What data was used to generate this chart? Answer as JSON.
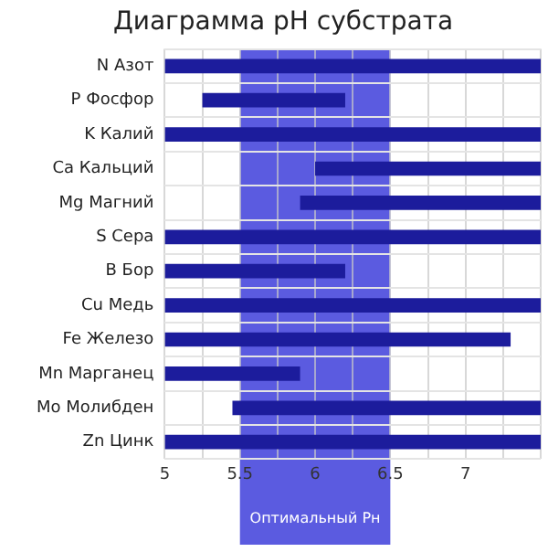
{
  "chart_data": {
    "type": "bar",
    "orientation": "horizontal",
    "title": "Диаграмма pH субстрата",
    "categories": [
      "N Азот",
      "P Фосфор",
      "K Калий",
      "Ca Кальций",
      "Mg Магний",
      "S Сера",
      "B Бор",
      "Cu Медь",
      "Fe Железо",
      "Mn Марганец",
      "Mo Молибден",
      "Zn Цинк"
    ],
    "base": [
      5,
      5.25,
      5,
      6,
      5.9,
      5,
      5,
      5,
      5,
      5,
      5.45,
      5
    ],
    "values": [
      2.5,
      0.95,
      2.5,
      1.5,
      1.6,
      2.5,
      1.2,
      2.5,
      2.3,
      0.9,
      2.05,
      2.5
    ],
    "color": "#1c1c9c",
    "xlim": [
      5,
      7.5
    ],
    "xticks": [
      5,
      {
        "value": 5.25,
        "label": null
      },
      5.5,
      {
        "value": 5.75,
        "label": null
      },
      6,
      {
        "value": 6.25,
        "label": null
      },
      6.5,
      {
        "value": 6.75,
        "label": null
      },
      7,
      {
        "value": 7.25,
        "label": null
      },
      {
        "value": 7.5,
        "label": null
      }
    ],
    "bands": [
      {
        "axis": "x",
        "from": 5.5,
        "to": 6.5,
        "label": "Оптимальный Рн",
        "color": "#5b5be0"
      }
    ],
    "grid": true,
    "legend": false
  }
}
